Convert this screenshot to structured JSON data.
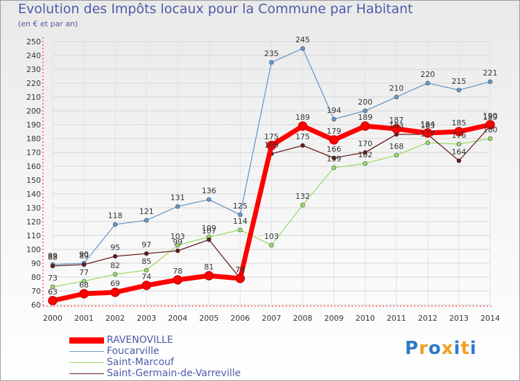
{
  "chart_data": {
    "type": "line",
    "title": "Evolution des Impôts locaux pour la Commune par Habitant",
    "subtitle": "(en € et par an)",
    "xlabel": "",
    "ylabel": "",
    "ylim": [
      60,
      250
    ],
    "yticks": [
      60,
      70,
      80,
      90,
      100,
      110,
      120,
      130,
      140,
      150,
      160,
      170,
      180,
      190,
      200,
      210,
      220,
      230,
      240,
      250
    ],
    "categories": [
      "2000",
      "2001",
      "2002",
      "2003",
      "2004",
      "2005",
      "2006",
      "2007",
      "2008",
      "2009",
      "2010",
      "2011",
      "2012",
      "2013",
      "2014"
    ],
    "series": [
      {
        "name": "RAVENOVILLE",
        "color": "#ff0000",
        "values": [
          63,
          68,
          69,
          74,
          78,
          81,
          79,
          175,
          189,
          179,
          189,
          187,
          184,
          185,
          190
        ]
      },
      {
        "name": "Foucarville",
        "color": "#6699cc",
        "values": [
          89,
          90,
          118,
          121,
          131,
          136,
          125,
          235,
          245,
          194,
          200,
          210,
          220,
          215,
          221
        ]
      },
      {
        "name": "Saint-Marcouf",
        "color": "#99dd66",
        "values": [
          73,
          77,
          82,
          85,
          103,
          109,
          114,
          103,
          132,
          159,
          162,
          168,
          177,
          176,
          180
        ]
      },
      {
        "name": "Saint-Germain-de-Varreville",
        "color": "#661a1a",
        "values": [
          88,
          89,
          95,
          97,
          99,
          107,
          79,
          169,
          175,
          166,
          170,
          183,
          183,
          164,
          189
        ]
      }
    ]
  },
  "logo": {
    "letters": [
      "P",
      "r",
      "o",
      "x",
      "i",
      "t",
      "i"
    ],
    "colors": [
      "#2e79c7",
      "#f0a020",
      "#2e79c7",
      "#f0a020",
      "#2e79c7",
      "#f0a020",
      "#2e79c7"
    ]
  }
}
